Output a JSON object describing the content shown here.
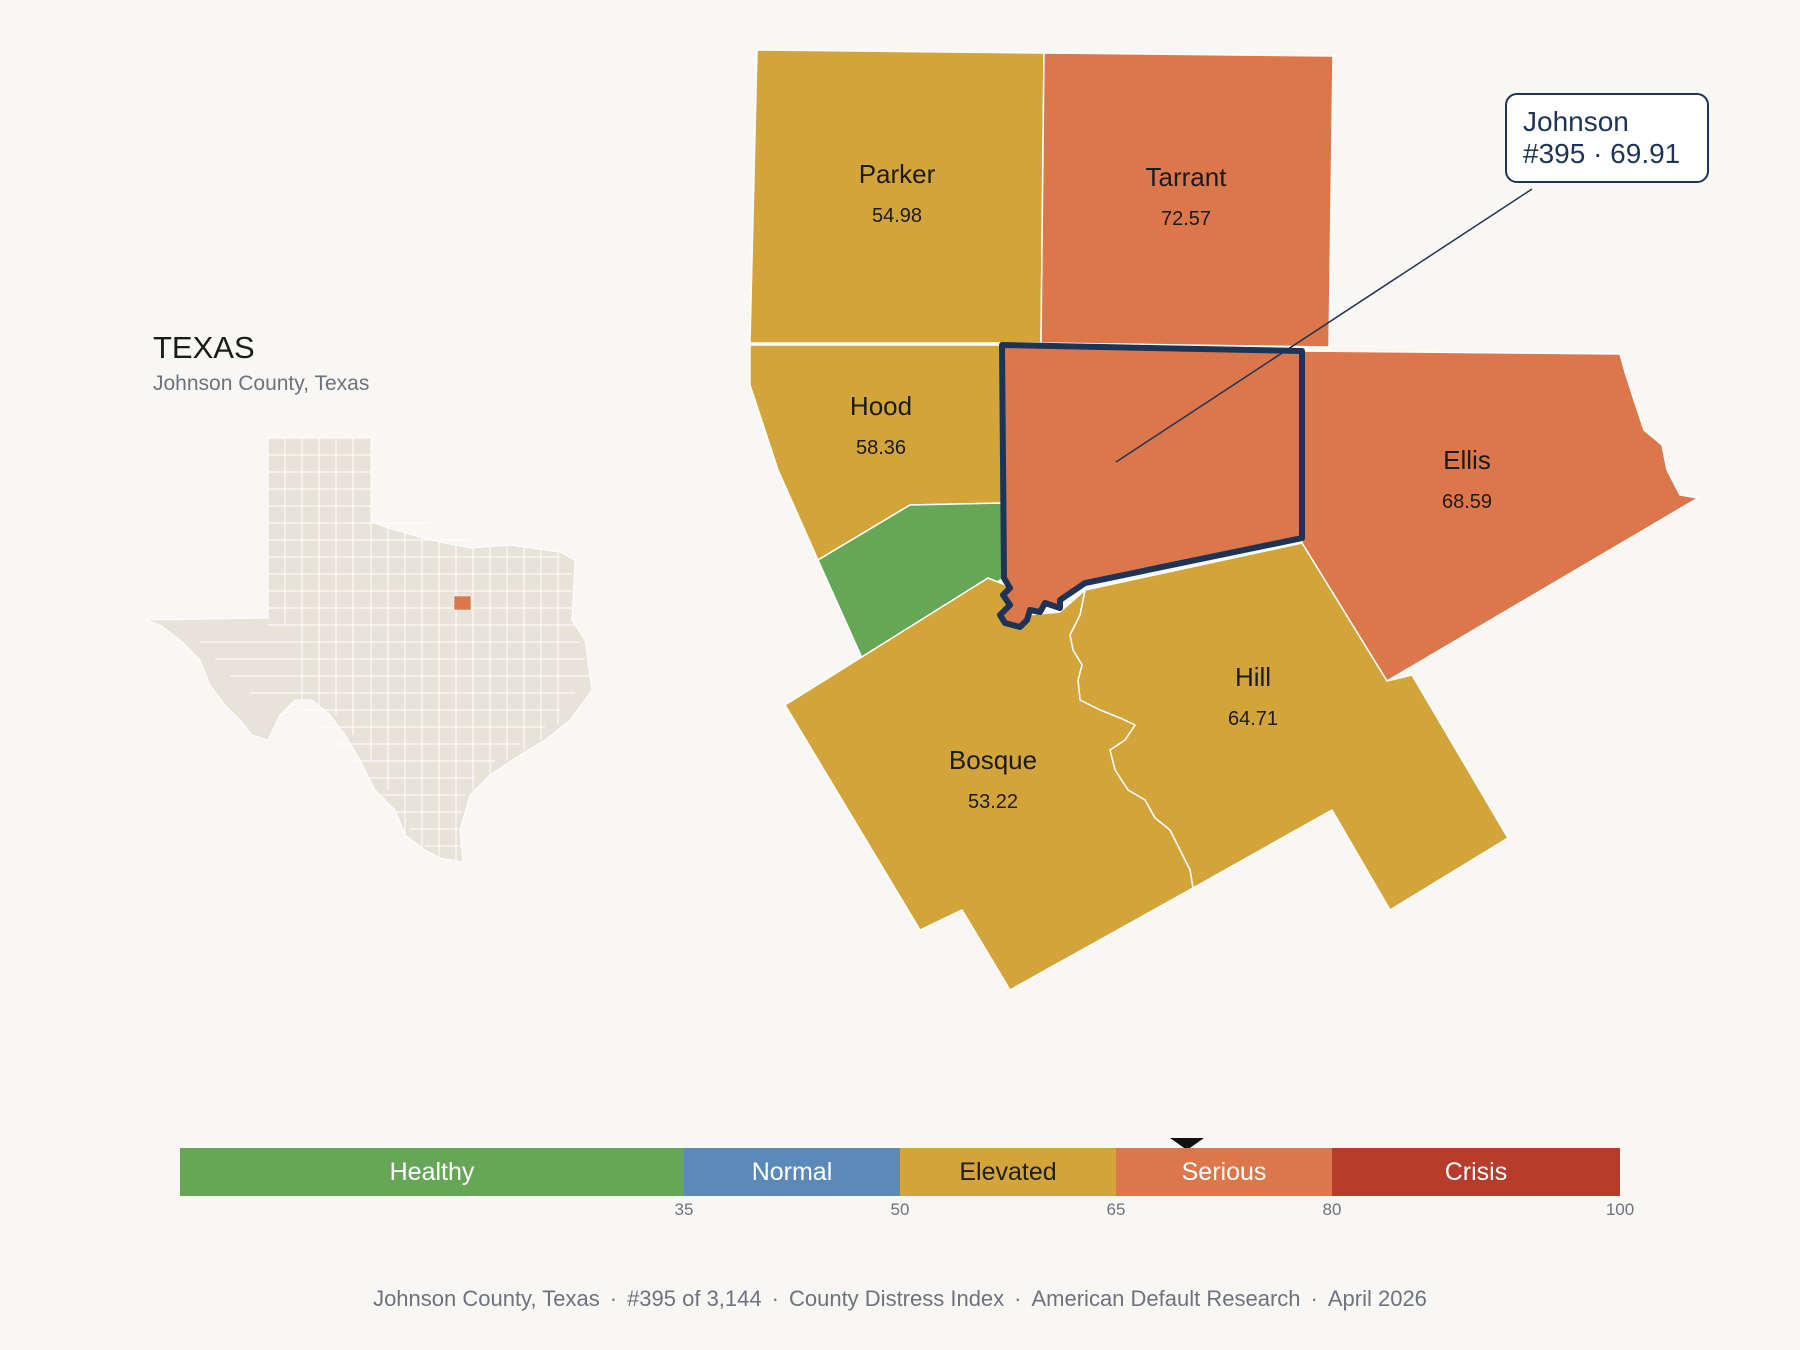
{
  "state": {
    "name": "TEXAS",
    "subtitle": "Johnson County, Texas"
  },
  "callout": {
    "line1": "Johnson",
    "line2": "#395 · 69.91"
  },
  "counties": [
    {
      "name": "Parker",
      "value": "54.98",
      "color": "#d3a43a"
    },
    {
      "name": "Tarrant",
      "value": "72.57",
      "color": "#db774a"
    },
    {
      "name": "Hood",
      "value": "58.36",
      "color": "#d3a43a"
    },
    {
      "name": "Ellis",
      "value": "68.59",
      "color": "#db774a"
    },
    {
      "name": "Hill",
      "value": "64.71",
      "color": "#d3a43a"
    },
    {
      "name": "Bosque",
      "value": "53.22",
      "color": "#d3a43a"
    },
    {
      "name": "Johnson",
      "value": "69.91",
      "color": "#db774a",
      "selected": true
    }
  ],
  "legend": {
    "segments": [
      {
        "label": "Healthy",
        "from": 0,
        "to": 35,
        "color": "#66a757"
      },
      {
        "label": "Normal",
        "from": 35,
        "to": 50,
        "color": "#5b8ab8"
      },
      {
        "label": "Elevated",
        "from": 50,
        "to": 65,
        "color": "#d3a43a"
      },
      {
        "label": "Serious",
        "from": 65,
        "to": 80,
        "color": "#db774a"
      },
      {
        "label": "Crisis",
        "from": 80,
        "to": 100,
        "color": "#b83c2c"
      }
    ],
    "ticks": [
      "35",
      "50",
      "65",
      "80",
      "100"
    ],
    "marker_value": 69.91
  },
  "footer": {
    "parts": [
      "Johnson County, Texas",
      "#395 of 3,144",
      "County Distress Index",
      "American Default Research",
      "April 2026"
    ]
  },
  "colors": {
    "outline": "#1e3457",
    "state_fill": "#e8e3d8",
    "highlight": "#db774a"
  }
}
